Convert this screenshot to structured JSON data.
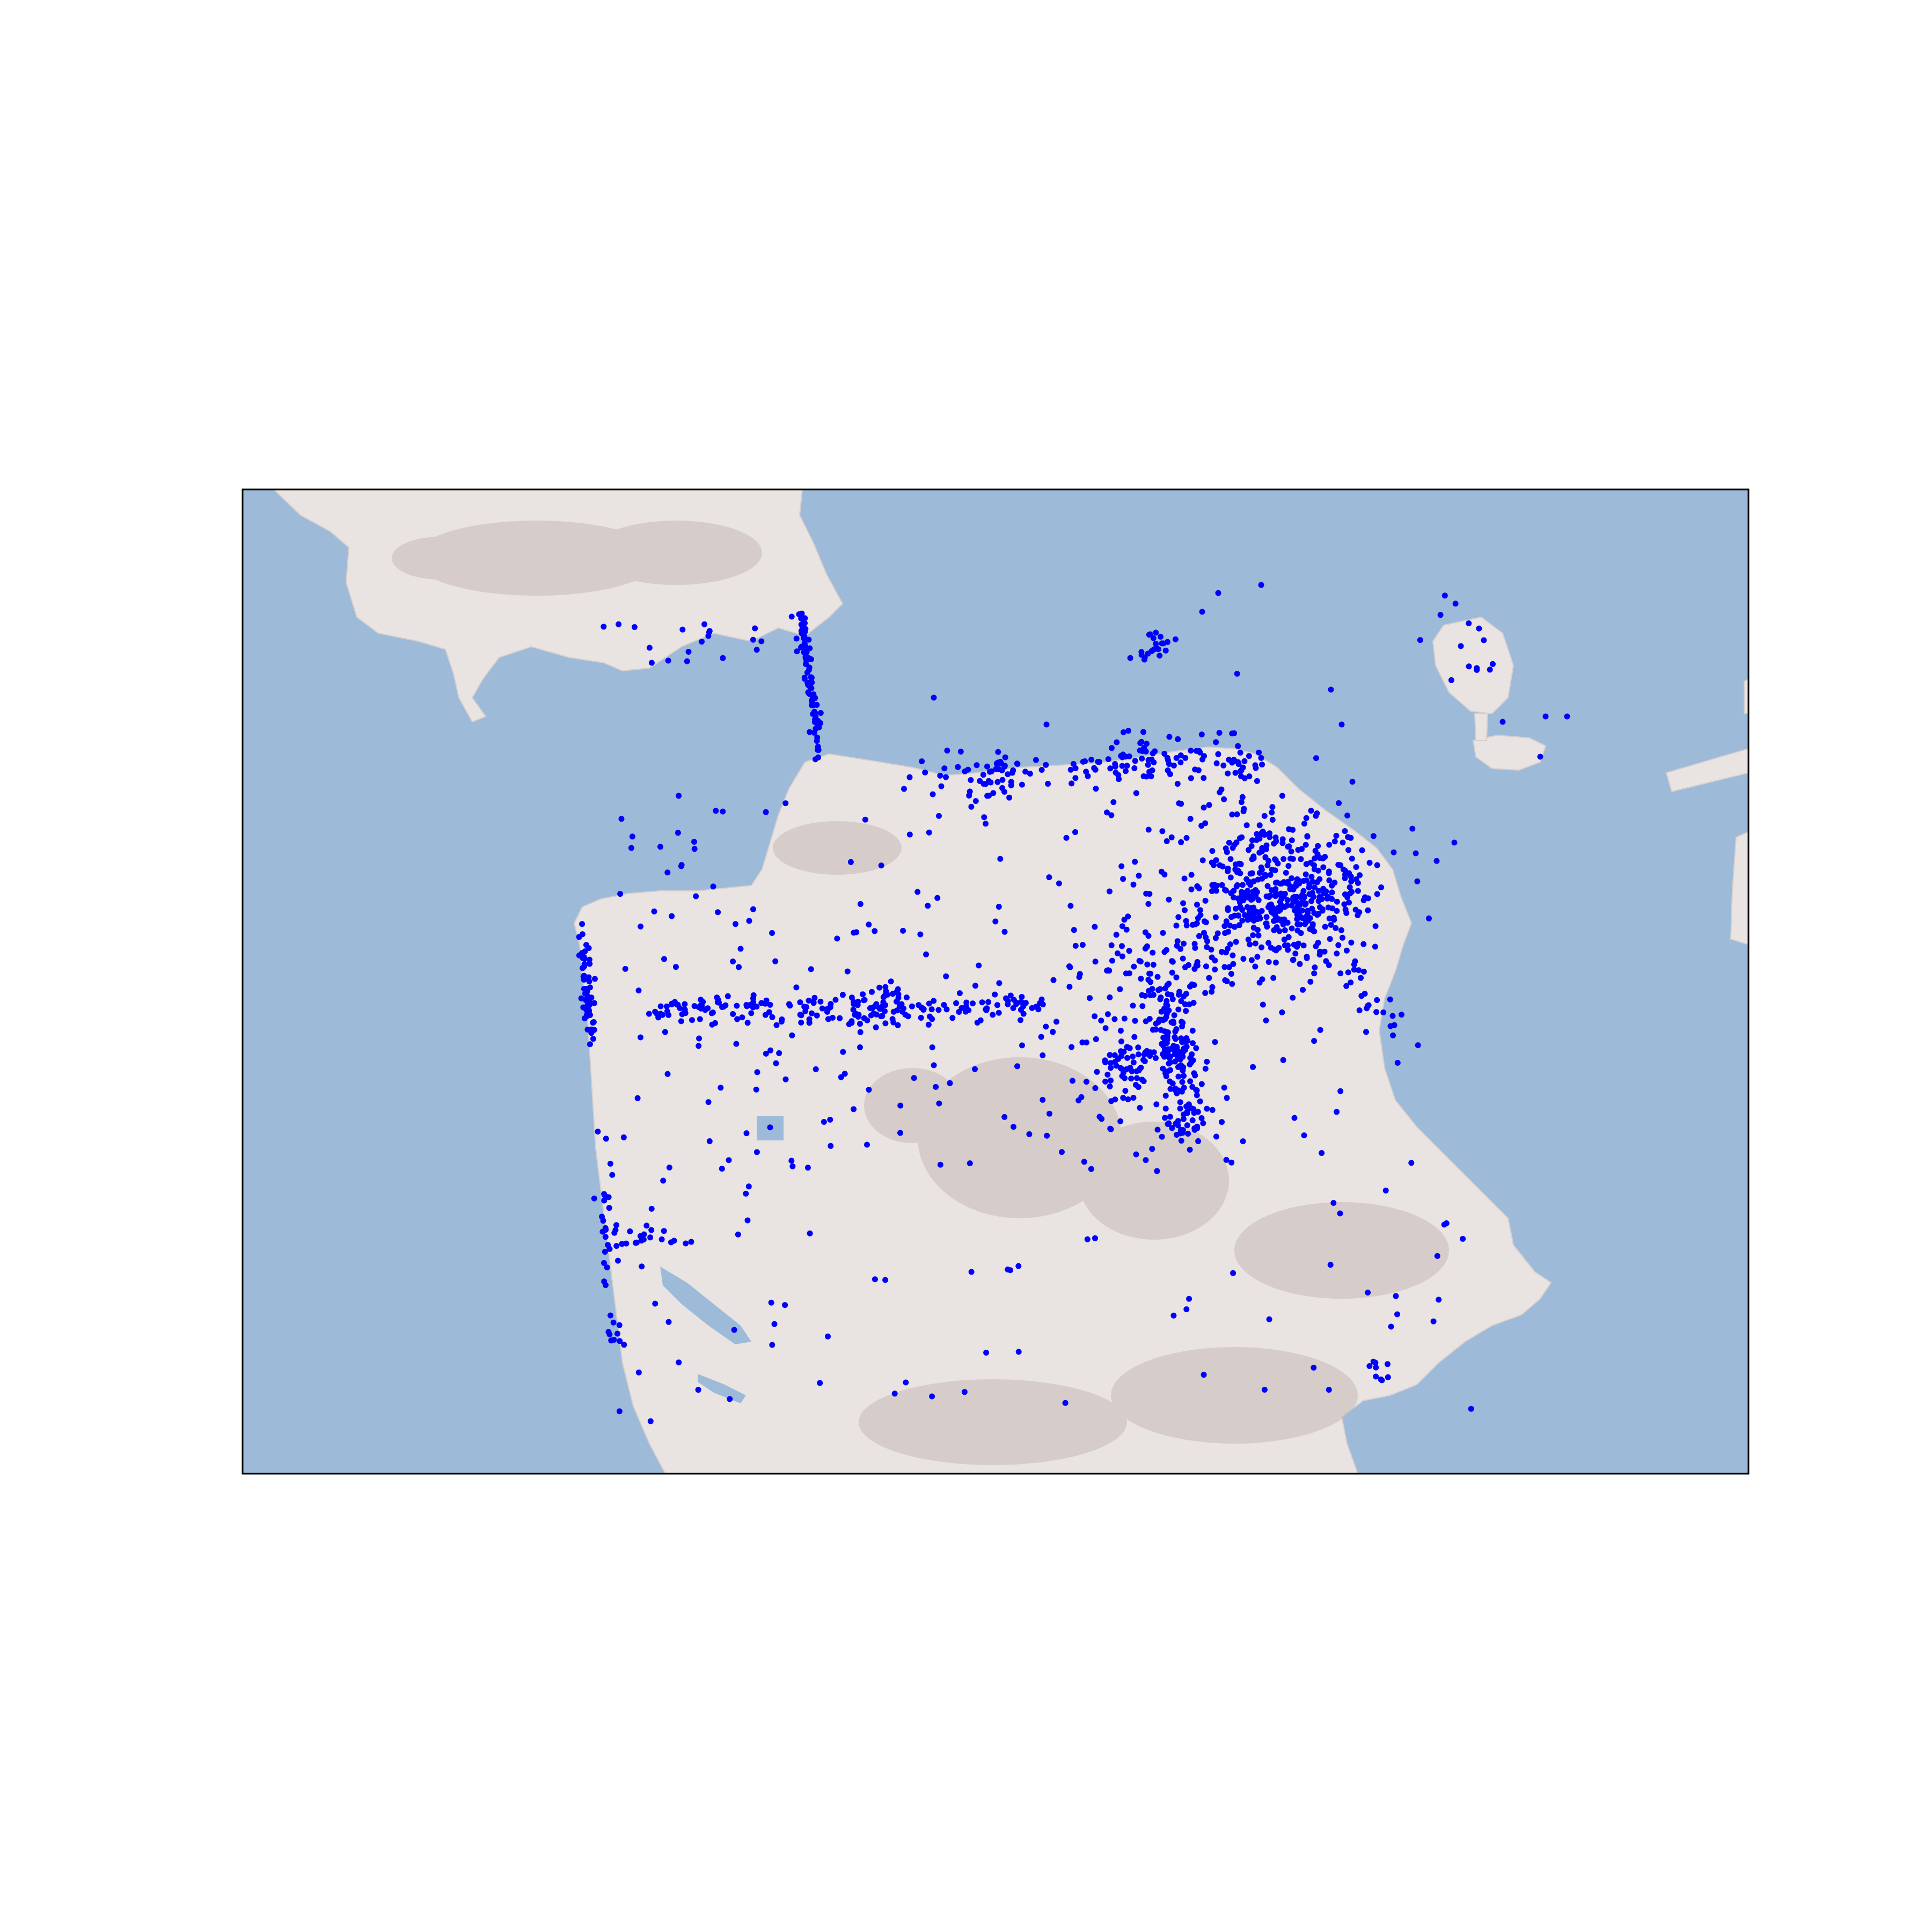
{
  "figure": {
    "background": "#ffffff"
  },
  "map": {
    "type": "scatter-on-terrain",
    "water_color": "#9dbbd8",
    "land_color": "#e9e3e2",
    "relief_shadow_color": "#b7a9a6",
    "frame_color": "#000000",
    "marker_color": "#0000ff",
    "regions": [
      {
        "name": "marin-headlands",
        "kind": "land"
      },
      {
        "name": "san-francisco-peninsula",
        "kind": "land"
      },
      {
        "name": "alcatraz-island",
        "kind": "land"
      },
      {
        "name": "treasure-island",
        "kind": "land"
      },
      {
        "name": "yerba-buena-island",
        "kind": "land"
      },
      {
        "name": "oakland-shoreline",
        "kind": "land"
      }
    ],
    "icons": [
      "marker-dot-icon"
    ]
  }
}
